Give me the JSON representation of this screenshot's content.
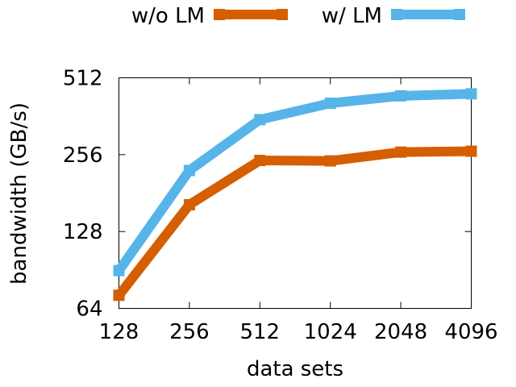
{
  "chart_data": {
    "type": "line",
    "title": "",
    "xlabel": "data sets",
    "ylabel": "bandwidth (GB/s)",
    "x": [
      128,
      256,
      512,
      1024,
      2048,
      4096
    ],
    "x_tick_labels": [
      "128",
      "256",
      "512",
      "1024",
      "2048",
      "4096"
    ],
    "x_scale": "log2",
    "y_scale": "log2",
    "ylim": [
      64,
      512
    ],
    "y_ticks": [
      64,
      128,
      256,
      512
    ],
    "y_tick_labels": [
      "64",
      "128",
      "256",
      "512"
    ],
    "legend_position": "top",
    "grid": false,
    "series": [
      {
        "name": "w/o LM",
        "color": "#d55e00",
        "values": [
          72,
          163,
          243,
          242,
          262,
          264
        ]
      },
      {
        "name": "w/ LM",
        "color": "#56b4e9",
        "values": [
          90,
          222,
          351,
          407,
          435,
          443
        ]
      }
    ]
  }
}
